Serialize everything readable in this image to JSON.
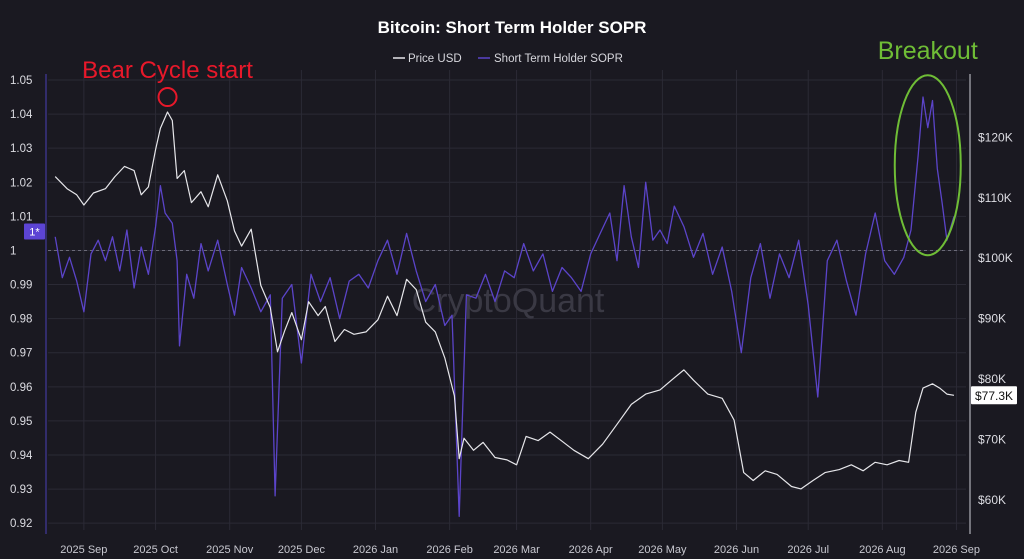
{
  "chart_data": {
    "type": "line",
    "title": "Bitcoin: Short Term Holder SOPR",
    "legend": {
      "placement": "top-center",
      "entries": [
        {
          "name": "Price USD",
          "color": "#e6e6ea"
        },
        {
          "name": "Short Term Holder SOPR",
          "color": "#5b44c9"
        }
      ]
    },
    "grid": true,
    "left_axis": {
      "range": [
        0.918,
        1.05
      ],
      "ticks": [
        "0.92",
        "0.93",
        "0.94",
        "0.95",
        "0.96",
        "0.97",
        "0.98",
        "0.99",
        "1",
        "1.01",
        "1.02",
        "1.03",
        "1.04",
        "1.05"
      ],
      "marker_label": "1*",
      "marker_value": 1.0
    },
    "right_axis": {
      "range": [
        55000,
        129500
      ],
      "ticks": [
        {
          "value": 60000,
          "label": "$60K"
        },
        {
          "value": 70000,
          "label": "$70K"
        },
        {
          "value": 80000,
          "label": "$80K"
        },
        {
          "value": 90000,
          "label": "$90K"
        },
        {
          "value": 100000,
          "label": "$100K"
        },
        {
          "value": 110000,
          "label": "$110K"
        },
        {
          "value": 120000,
          "label": "$120K"
        }
      ],
      "current_label": "$77.3K",
      "current_value": 77300
    },
    "x_axis": {
      "range": [
        "2025-08-17",
        "2026-09-05"
      ],
      "ticks": [
        {
          "date": "2025-09-01",
          "label": "2025 Sep"
        },
        {
          "date": "2025-10-01",
          "label": "2025 Oct"
        },
        {
          "date": "2025-11-01",
          "label": "2025 Nov"
        },
        {
          "date": "2025-12-01",
          "label": "2025 Dec"
        },
        {
          "date": "2026-01-01",
          "label": "2026 Jan"
        },
        {
          "date": "2026-02-01",
          "label": "2026 Feb"
        },
        {
          "date": "2026-03-01",
          "label": "2026 Mar"
        },
        {
          "date": "2026-04-01",
          "label": "2026 Apr"
        },
        {
          "date": "2026-05-01",
          "label": "2026 May"
        },
        {
          "date": "2026-06-01",
          "label": "2026 Jun"
        },
        {
          "date": "2026-07-01",
          "label": "2026 Jul"
        },
        {
          "date": "2026-08-01",
          "label": "2026 Aug"
        },
        {
          "date": "2026-09-01",
          "label": "2026 Sep"
        }
      ]
    },
    "series": [
      {
        "name": "Price USD",
        "axis": "right",
        "color": "#e6e6ea",
        "points": [
          [
            "2025-08-20",
            113500
          ],
          [
            "2025-08-25",
            111500
          ],
          [
            "2025-08-29",
            110500
          ],
          [
            "2025-09-01",
            108800
          ],
          [
            "2025-09-05",
            110800
          ],
          [
            "2025-09-10",
            111500
          ],
          [
            "2025-09-14",
            113500
          ],
          [
            "2025-09-18",
            115200
          ],
          [
            "2025-09-22",
            114500
          ],
          [
            "2025-09-25",
            110500
          ],
          [
            "2025-09-28",
            111800
          ],
          [
            "2025-10-01",
            118000
          ],
          [
            "2025-10-03",
            121500
          ],
          [
            "2025-10-06",
            124200
          ],
          [
            "2025-10-08",
            122800
          ],
          [
            "2025-10-10",
            113200
          ],
          [
            "2025-10-13",
            114500
          ],
          [
            "2025-10-16",
            109200
          ],
          [
            "2025-10-20",
            111000
          ],
          [
            "2025-10-23",
            108500
          ],
          [
            "2025-10-27",
            113800
          ],
          [
            "2025-10-31",
            109500
          ],
          [
            "2025-11-03",
            104500
          ],
          [
            "2025-11-06",
            102000
          ],
          [
            "2025-11-10",
            104800
          ],
          [
            "2025-11-14",
            95500
          ],
          [
            "2025-11-18",
            91800
          ],
          [
            "2025-11-21",
            84500
          ],
          [
            "2025-11-24",
            88000
          ],
          [
            "2025-11-27",
            91000
          ],
          [
            "2025-12-01",
            86500
          ],
          [
            "2025-12-04",
            92800
          ],
          [
            "2025-12-08",
            90500
          ],
          [
            "2025-12-11",
            92000
          ],
          [
            "2025-12-15",
            86200
          ],
          [
            "2025-12-19",
            88200
          ],
          [
            "2025-12-23",
            87400
          ],
          [
            "2025-12-28",
            87800
          ],
          [
            "2026-01-02",
            89800
          ],
          [
            "2026-01-06",
            93700
          ],
          [
            "2026-01-10",
            90500
          ],
          [
            "2026-01-14",
            96500
          ],
          [
            "2026-01-18",
            94800
          ],
          [
            "2026-01-22",
            89400
          ],
          [
            "2026-01-26",
            87800
          ],
          [
            "2026-01-30",
            83500
          ],
          [
            "2026-02-03",
            77200
          ],
          [
            "2026-02-05",
            66800
          ],
          [
            "2026-02-07",
            70200
          ],
          [
            "2026-02-11",
            68200
          ],
          [
            "2026-02-15",
            69500
          ],
          [
            "2026-02-20",
            67000
          ],
          [
            "2026-02-25",
            66600
          ],
          [
            "2026-03-01",
            65800
          ],
          [
            "2026-03-05",
            70500
          ],
          [
            "2026-03-10",
            69800
          ],
          [
            "2026-03-15",
            71200
          ],
          [
            "2026-03-20",
            69700
          ],
          [
            "2026-03-25",
            68200
          ],
          [
            "2026-03-31",
            66800
          ],
          [
            "2026-04-06",
            69200
          ],
          [
            "2026-04-12",
            72500
          ],
          [
            "2026-04-18",
            75800
          ],
          [
            "2026-04-24",
            77500
          ],
          [
            "2026-04-30",
            78200
          ],
          [
            "2026-05-06",
            80200
          ],
          [
            "2026-05-10",
            81500
          ],
          [
            "2026-05-14",
            79800
          ],
          [
            "2026-05-20",
            77500
          ],
          [
            "2026-05-26",
            76800
          ],
          [
            "2026-05-31",
            73200
          ],
          [
            "2026-06-04",
            64500
          ],
          [
            "2026-06-08",
            63200
          ],
          [
            "2026-06-13",
            64800
          ],
          [
            "2026-06-18",
            64200
          ],
          [
            "2026-06-24",
            62200
          ],
          [
            "2026-06-28",
            61800
          ],
          [
            "2026-07-03",
            63200
          ],
          [
            "2026-07-08",
            64500
          ],
          [
            "2026-07-14",
            65000
          ],
          [
            "2026-07-19",
            65800
          ],
          [
            "2026-07-24",
            64800
          ],
          [
            "2026-07-29",
            66200
          ],
          [
            "2026-08-03",
            65800
          ],
          [
            "2026-08-08",
            66500
          ],
          [
            "2026-08-12",
            66200
          ],
          [
            "2026-08-15",
            74500
          ],
          [
            "2026-08-18",
            78500
          ],
          [
            "2026-08-22",
            79200
          ],
          [
            "2026-08-25",
            78500
          ],
          [
            "2026-08-28",
            77500
          ],
          [
            "2026-08-31",
            77300
          ]
        ]
      },
      {
        "name": "Short Term Holder SOPR",
        "axis": "left",
        "color": "#5b44c9",
        "points": [
          [
            "2025-08-20",
            1.004
          ],
          [
            "2025-08-23",
            0.992
          ],
          [
            "2025-08-26",
            0.998
          ],
          [
            "2025-08-29",
            0.991
          ],
          [
            "2025-09-01",
            0.982
          ],
          [
            "2025-09-04",
            0.999
          ],
          [
            "2025-09-07",
            1.003
          ],
          [
            "2025-09-10",
            0.997
          ],
          [
            "2025-09-13",
            1.004
          ],
          [
            "2025-09-16",
            0.994
          ],
          [
            "2025-09-19",
            1.006
          ],
          [
            "2025-09-22",
            0.989
          ],
          [
            "2025-09-25",
            1.001
          ],
          [
            "2025-09-28",
            0.993
          ],
          [
            "2025-10-01",
            1.007
          ],
          [
            "2025-10-03",
            1.019
          ],
          [
            "2025-10-05",
            1.011
          ],
          [
            "2025-10-08",
            1.008
          ],
          [
            "2025-10-10",
            0.997
          ],
          [
            "2025-10-11",
            0.972
          ],
          [
            "2025-10-14",
            0.993
          ],
          [
            "2025-10-17",
            0.986
          ],
          [
            "2025-10-20",
            1.002
          ],
          [
            "2025-10-23",
            0.994
          ],
          [
            "2025-10-27",
            1.003
          ],
          [
            "2025-10-31",
            0.99
          ],
          [
            "2025-11-03",
            0.981
          ],
          [
            "2025-11-06",
            0.995
          ],
          [
            "2025-11-10",
            0.989
          ],
          [
            "2025-11-14",
            0.982
          ],
          [
            "2025-11-18",
            0.987
          ],
          [
            "2025-11-20",
            0.928
          ],
          [
            "2025-11-23",
            0.986
          ],
          [
            "2025-11-27",
            0.99
          ],
          [
            "2025-12-01",
            0.967
          ],
          [
            "2025-12-05",
            0.993
          ],
          [
            "2025-12-09",
            0.985
          ],
          [
            "2025-12-13",
            0.992
          ],
          [
            "2025-12-17",
            0.98
          ],
          [
            "2025-12-21",
            0.991
          ],
          [
            "2025-12-25",
            0.993
          ],
          [
            "2025-12-29",
            0.989
          ],
          [
            "2026-01-02",
            0.997
          ],
          [
            "2026-01-06",
            1.003
          ],
          [
            "2026-01-10",
            0.993
          ],
          [
            "2026-01-14",
            1.005
          ],
          [
            "2026-01-18",
            0.994
          ],
          [
            "2026-01-22",
            0.985
          ],
          [
            "2026-01-26",
            0.99
          ],
          [
            "2026-01-30",
            0.978
          ],
          [
            "2026-02-02",
            0.981
          ],
          [
            "2026-02-05",
            0.922
          ],
          [
            "2026-02-08",
            0.987
          ],
          [
            "2026-02-12",
            0.986
          ],
          [
            "2026-02-16",
            0.993
          ],
          [
            "2026-02-20",
            0.985
          ],
          [
            "2026-02-24",
            0.994
          ],
          [
            "2026-02-28",
            0.992
          ],
          [
            "2026-03-04",
            1.002
          ],
          [
            "2026-03-08",
            0.994
          ],
          [
            "2026-03-12",
            0.999
          ],
          [
            "2026-03-16",
            0.988
          ],
          [
            "2026-03-20",
            0.995
          ],
          [
            "2026-03-24",
            0.992
          ],
          [
            "2026-03-28",
            0.988
          ],
          [
            "2026-04-01",
            0.999
          ],
          [
            "2026-04-05",
            1.005
          ],
          [
            "2026-04-09",
            1.011
          ],
          [
            "2026-04-12",
            0.997
          ],
          [
            "2026-04-15",
            1.019
          ],
          [
            "2026-04-18",
            1.004
          ],
          [
            "2026-04-21",
            0.995
          ],
          [
            "2026-04-24",
            1.02
          ],
          [
            "2026-04-27",
            1.003
          ],
          [
            "2026-04-30",
            1.006
          ],
          [
            "2026-05-03",
            1.002
          ],
          [
            "2026-05-06",
            1.013
          ],
          [
            "2026-05-10",
            1.007
          ],
          [
            "2026-05-14",
            0.998
          ],
          [
            "2026-05-18",
            1.005
          ],
          [
            "2026-05-22",
            0.993
          ],
          [
            "2026-05-26",
            1.001
          ],
          [
            "2026-05-30",
            0.988
          ],
          [
            "2026-06-03",
            0.97
          ],
          [
            "2026-06-07",
            0.992
          ],
          [
            "2026-06-11",
            1.002
          ],
          [
            "2026-06-15",
            0.986
          ],
          [
            "2026-06-19",
            0.999
          ],
          [
            "2026-06-23",
            0.992
          ],
          [
            "2026-06-27",
            1.003
          ],
          [
            "2026-07-01",
            0.984
          ],
          [
            "2026-07-05",
            0.957
          ],
          [
            "2026-07-09",
            0.997
          ],
          [
            "2026-07-13",
            1.003
          ],
          [
            "2026-07-17",
            0.991
          ],
          [
            "2026-07-21",
            0.981
          ],
          [
            "2026-07-25",
            0.999
          ],
          [
            "2026-07-29",
            1.011
          ],
          [
            "2026-08-02",
            0.997
          ],
          [
            "2026-08-06",
            0.993
          ],
          [
            "2026-08-10",
            0.998
          ],
          [
            "2026-08-13",
            1.006
          ],
          [
            "2026-08-16",
            1.028
          ],
          [
            "2026-08-18",
            1.045
          ],
          [
            "2026-08-20",
            1.036
          ],
          [
            "2026-08-22",
            1.044
          ],
          [
            "2026-08-24",
            1.024
          ],
          [
            "2026-08-26",
            1.014
          ],
          [
            "2026-08-28",
            1.003
          ],
          [
            "2026-08-31",
            1.01
          ]
        ]
      }
    ],
    "annotations": [
      {
        "text": "Bear Cycle start",
        "color": "#e8182a",
        "date": "2025-10-06",
        "value": 1.045
      },
      {
        "text": "Breakout",
        "color": "#6fbd36",
        "date": "2026-08-20",
        "value": 1.025
      }
    ],
    "watermark": "CryptoQuant"
  }
}
